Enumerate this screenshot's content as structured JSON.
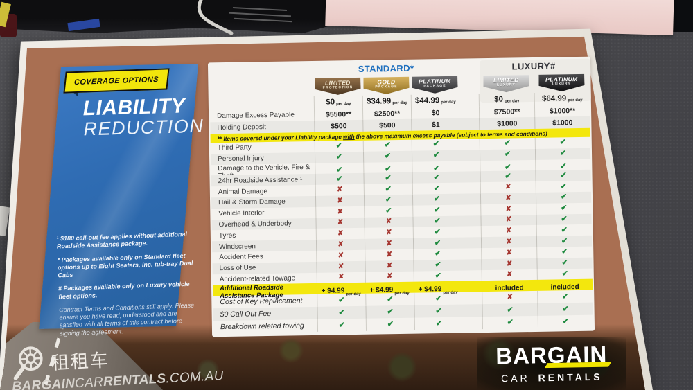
{
  "flyer": {
    "tag_label": "COVERAGE OPTIONS",
    "title": {
      "line1": "LIABILITY",
      "line2": "REDUCTION"
    },
    "footnotes": [
      "¹ $180 call-out fee applies without additional Roadside Assistance package.",
      "* Packages available only on Standard fleet options up to Eight Seaters, inc. tub-tray Dual Cabs",
      "# Packages available only on Luxury vehicle fleet options.",
      "Contract Terms and Conditions still apply. Please ensure you have read, understood and are satisfied with all terms of this contract before signing the agreement."
    ],
    "table": {
      "groups": [
        {
          "label": "STANDARD*"
        },
        {
          "label": "LUXURY#"
        }
      ],
      "packages": [
        {
          "line1": "LIMITED",
          "line2": "PROTECTION",
          "style": "bronze"
        },
        {
          "line1": "GOLD",
          "line2": "PACKAGE",
          "style": "gold"
        },
        {
          "line1": "PLATINUM",
          "line2": "PACKAGE",
          "style": "charcoal"
        },
        {
          "line1": "LIMITED",
          "line2": "LUXURY",
          "style": "silver"
        },
        {
          "line1": "PLATINUM",
          "line2": "LUXURY",
          "style": "black"
        }
      ],
      "prices": [
        {
          "amount": "$0",
          "unit": "per day"
        },
        {
          "amount": "$34.99",
          "unit": "per day"
        },
        {
          "amount": "$44.99",
          "unit": "per day"
        },
        {
          "amount": "$0",
          "unit": "per day"
        },
        {
          "amount": "$64.99",
          "unit": "per day"
        }
      ],
      "money_rows": [
        {
          "label": "Damage Excess Payable",
          "values": [
            "$5500**",
            "$2500**",
            "$0",
            "$7500**",
            "$1000**"
          ]
        },
        {
          "label": "Holding Deposit",
          "values": [
            "$500",
            "$500",
            "$1",
            "$1000",
            "$1000"
          ]
        }
      ],
      "note": {
        "pre": "** Items covered under your Liability package",
        "bold": "with",
        "post": "the above maximum excess payable (subject to terms and conditions)"
      },
      "coverage_rows": [
        {
          "label": "Third Party",
          "values": [
            "check",
            "check",
            "check",
            "check",
            "check"
          ]
        },
        {
          "label": "Personal Injury",
          "values": [
            "check",
            "check",
            "check",
            "check",
            "check"
          ]
        },
        {
          "label": "Damage to the Vehicle, Fire & Theft",
          "values": [
            "check",
            "check",
            "check",
            "check",
            "check"
          ]
        },
        {
          "label": "24hr Roadside Assistance ¹",
          "values": [
            "check",
            "check",
            "check",
            "check",
            "check"
          ]
        },
        {
          "label": "Animal Damage",
          "values": [
            "cross",
            "check",
            "check",
            "cross",
            "check"
          ]
        },
        {
          "label": "Hail & Storm Damage",
          "values": [
            "cross",
            "check",
            "check",
            "cross",
            "check"
          ]
        },
        {
          "label": "Vehicle Interior",
          "values": [
            "cross",
            "check",
            "check",
            "cross",
            "check"
          ]
        },
        {
          "label": "Overhead & Underbody",
          "values": [
            "cross",
            "cross",
            "check",
            "cross",
            "check"
          ]
        },
        {
          "label": "Tyres",
          "values": [
            "cross",
            "cross",
            "check",
            "cross",
            "check"
          ]
        },
        {
          "label": "Windscreen",
          "values": [
            "cross",
            "cross",
            "check",
            "cross",
            "check"
          ]
        },
        {
          "label": "Accident Fees",
          "values": [
            "cross",
            "cross",
            "check",
            "cross",
            "check"
          ]
        },
        {
          "label": "Loss of Use",
          "values": [
            "cross",
            "cross",
            "check",
            "cross",
            "check"
          ]
        },
        {
          "label": "Accident-related Towage",
          "values": [
            "cross",
            "cross",
            "check",
            "cross",
            "check"
          ]
        }
      ],
      "addon_row": {
        "label": "Additional Roadside Assistance Package",
        "values": [
          {
            "amount": "+ $4.99",
            "unit": "per day"
          },
          {
            "amount": "+ $4.99",
            "unit": "per day"
          },
          {
            "amount": "+ $4.99",
            "unit": "per day"
          },
          {
            "amount": "included",
            "unit": ""
          },
          {
            "amount": "included",
            "unit": ""
          }
        ]
      },
      "extra_rows": [
        {
          "label": "Cost of Key Replacement",
          "values": [
            "check",
            "check",
            "check",
            "cross",
            "check"
          ]
        },
        {
          "label": "$0 Call Out Fee",
          "values": [
            "check",
            "check",
            "check",
            "check",
            "check"
          ]
        },
        {
          "label": "Breakdown related towing",
          "values": [
            "check",
            "check",
            "check",
            "check",
            "check"
          ]
        }
      ]
    },
    "footer": {
      "zuzuche": {
        "cn": "租租车",
        "brand": [
          {
            "t": "BARGAIN",
            "w": "bold"
          },
          {
            "t": "CAR",
            "w": "light"
          },
          {
            "t": "RENTALS",
            "w": "bold"
          },
          {
            "t": ".COM.AU",
            "w": "light"
          }
        ]
      },
      "bargain": {
        "name": "BARGAIN",
        "sub_light": "CAR",
        "sub_bold": "RENTALS"
      }
    }
  },
  "colors": {
    "accent_yellow": "#f2e60c",
    "panel_blue": "#2f6cb3",
    "standard_blue": "#1d6fbe",
    "luxury_dark": "#33343a",
    "check_green": "#1e8a3e",
    "cross_red": "#a53630",
    "desk_gray": "#48484c",
    "pink_paper": "#ecd0cc"
  }
}
